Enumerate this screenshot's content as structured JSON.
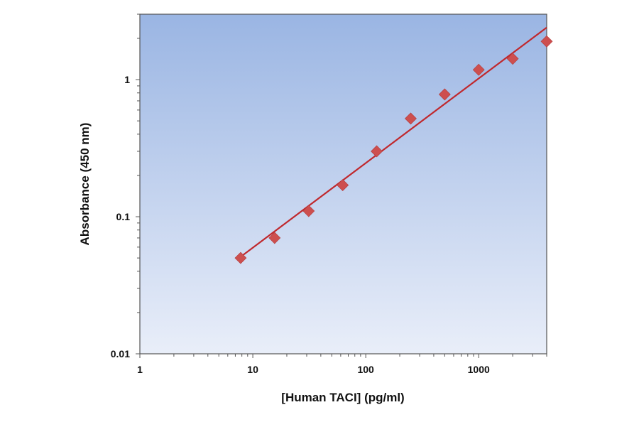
{
  "chart_data": {
    "type": "scatter",
    "title": "",
    "xlabel": "[Human TACI] (pg/ml)",
    "ylabel": "Absorbance (450 nm)",
    "x_scale": "log",
    "y_scale": "log",
    "xlim": [
      1,
      4000
    ],
    "ylim": [
      0.01,
      3
    ],
    "x_ticks": [
      1,
      10,
      100,
      1000
    ],
    "x_tick_labels": [
      "1",
      "10",
      "100",
      "1000"
    ],
    "y_ticks": [
      0.01,
      0.1,
      1
    ],
    "y_tick_labels": [
      "0.01",
      "0.1",
      "1"
    ],
    "grid": false,
    "legend": "none",
    "series": [
      {
        "points": [
          {
            "x": 7.8,
            "y": 0.05
          },
          {
            "x": 15.6,
            "y": 0.07
          },
          {
            "x": 31.25,
            "y": 0.11
          },
          {
            "x": 62.5,
            "y": 0.17
          },
          {
            "x": 125,
            "y": 0.3
          },
          {
            "x": 250,
            "y": 0.52
          },
          {
            "x": 500,
            "y": 0.78
          },
          {
            "x": 1000,
            "y": 1.18
          },
          {
            "x": 2000,
            "y": 1.42
          },
          {
            "x": 4000,
            "y": 1.9
          }
        ]
      }
    ],
    "fit_line": {
      "type": "power",
      "x_start": 7.8,
      "x_end": 4000,
      "y_start": 0.051,
      "y_end": 2.4
    },
    "colors": {
      "marker": "#cd4f4f",
      "fit_line": "#c0282d",
      "plot_bg_top": "#9ab5e3",
      "plot_bg_bottom": "#e9eef9",
      "axis": "#555555"
    }
  }
}
